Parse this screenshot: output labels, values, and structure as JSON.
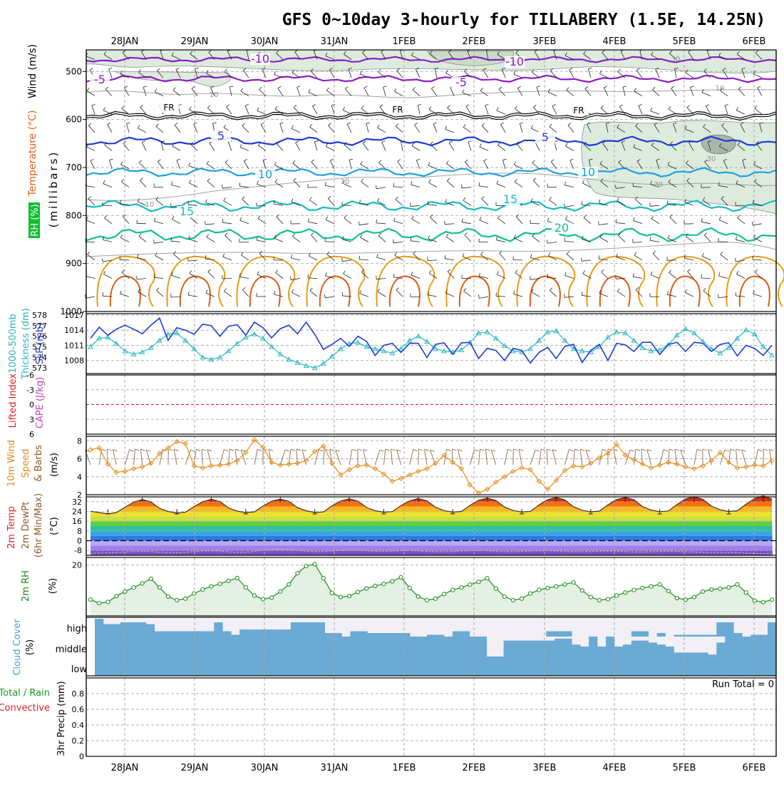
{
  "chart_data": {
    "type": "meteogram",
    "title": "GFS 0~10day 3-hourly for TILLABERY (1.5E, 14.25N)",
    "dates": [
      "28JAN",
      "29JAN",
      "30JAN",
      "31JAN",
      "1FEB",
      "2FEB",
      "3FEB",
      "4FEB",
      "5FEB",
      "6FEB"
    ],
    "colors": {
      "purple": "#8c1cc8",
      "black": "#000000",
      "blue": "#1c3cd8",
      "azure": "#1ca0e0",
      "teal": "#14bcc0",
      "green": "#10c090",
      "orange": "#e89a10",
      "darkorange": "#e05a10",
      "rh_fill": "#dcebdc",
      "cloud": "#6aaad4",
      "slp": "#1c3cd8",
      "thick": "#28b8c0",
      "wind": "#e88c1c",
      "rh2m": "#1c8c1c"
    },
    "panels": {
      "upper": {
        "ylabel_wind": "Wind (m/s)",
        "ylabel_temp": "Temperature (°C)",
        "ylabel_rh": "RH (%)",
        "ylabel_units": "(millibars)",
        "yticks": [
          "500",
          "600",
          "700",
          "800",
          "900",
          "1000"
        ],
        "contour_labels": [
          {
            "text": "-10",
            "color": "purple"
          },
          {
            "text": "-10",
            "color": "purple"
          },
          {
            "text": "-5",
            "color": "purple"
          },
          {
            "text": "-5",
            "color": "purple"
          },
          {
            "text": "FR",
            "color": "black"
          },
          {
            "text": "FR",
            "color": "black"
          },
          {
            "text": "FR",
            "color": "black"
          },
          {
            "text": "5",
            "color": "blue"
          },
          {
            "text": "5",
            "color": "blue"
          },
          {
            "text": "10",
            "color": "azure"
          },
          {
            "text": "10",
            "color": "azure"
          },
          {
            "text": "15",
            "color": "teal"
          },
          {
            "text": "15",
            "color": "teal"
          },
          {
            "text": "20",
            "color": "green"
          }
        ],
        "rh_labels": [
          "10",
          "10",
          "10",
          "10",
          "30",
          "30",
          "30"
        ],
        "levels_mb": {
          "minus10": 475,
          "minus5": 515,
          "freezing": 590,
          "plus5": 645,
          "plus10": 710,
          "plus15": 780,
          "plus20": 840
        },
        "ylim_mb": [
          1000,
          455
        ]
      },
      "slp_thickness": {
        "ylabel_thickness": "1000-500mb Thickness (dm)",
        "ylabel_slp": "SLP (mb)",
        "thickness_ticks": [
          "578",
          "577",
          "576",
          "575",
          "574",
          "573"
        ],
        "slp_ticks": [
          "1017",
          "1014",
          "1011",
          "1008"
        ],
        "thickness_range_dm": [
          572.6,
          578
        ],
        "slp_range_mb": [
          1005.7,
          1017
        ],
        "slp": [
          1012.4,
          1014.6,
          1013.0,
          1014.2,
          1015.0,
          1014.2,
          1013.3,
          1015.0,
          1016.4,
          1012.0,
          1014.5,
          1014.0,
          1013.2,
          1015.2,
          1014.9,
          1012.8,
          1014.8,
          1015.1,
          1013.0,
          1015.6,
          1014.5,
          1012.5,
          1014.3,
          1015.0,
          1013.3,
          1015.6,
          1013.2,
          1010.2,
          1011.2,
          1012.4,
          1010.8,
          1012.8,
          1011.8,
          1009.0,
          1011.0,
          1011.4,
          1009.6,
          1011.4,
          1011.4,
          1008.6,
          1011.2,
          1011.5,
          1009.2,
          1011.5,
          1011.6,
          1008.4,
          1010.4,
          1010.0,
          1008.0,
          1010.4,
          1010.0,
          1007.5,
          1009.6,
          1010.6,
          1008.4,
          1010.8,
          1011.2,
          1007.6,
          1010.0,
          1011.2,
          1008.0,
          1011.4,
          1011.1,
          1009.8,
          1011.6,
          1011.6,
          1009.2,
          1011.2,
          1011.6,
          1009.8,
          1011.6,
          1011.4,
          1009.8,
          1011.2,
          1011.5,
          1008.9,
          1011.0,
          1010.4,
          1009.0,
          1011.0
        ],
        "thickness": [
          575.0,
          575.8,
          575.9,
          575.3,
          574.6,
          574.3,
          574.5,
          574.9,
          575.6,
          576.2,
          576.3,
          575.6,
          574.8,
          574.0,
          573.8,
          574.0,
          574.6,
          575.3,
          575.9,
          576.2,
          575.8,
          575.0,
          574.3,
          573.8,
          573.5,
          573.2,
          573.0,
          573.4,
          574.1,
          574.8,
          575.3,
          575.4,
          575.0,
          574.8,
          574.6,
          574.4,
          574.8,
          575.6,
          576.0,
          575.5,
          574.8,
          574.6,
          574.5,
          574.7,
          575.4,
          576.3,
          576.4,
          575.8,
          575.1,
          574.6,
          574.5,
          574.8,
          575.6,
          576.4,
          576.5,
          575.6,
          574.8,
          574.6,
          574.5,
          575.0,
          575.9,
          576.4,
          576.3,
          575.6,
          574.9,
          574.6,
          574.7,
          575.2,
          576.1,
          576.7,
          576.3,
          575.5,
          574.8,
          574.4,
          574.9,
          575.8,
          576.6,
          576.2,
          575.0,
          574.2
        ]
      },
      "cape": {
        "ylabel_li": "Lifted Index",
        "ylabel_cape": "CAPE (J/kg)",
        "yticks": [
          "-6",
          "-3",
          "0",
          "3",
          "6"
        ],
        "ylim": [
          -6,
          6
        ]
      },
      "wind10m": {
        "ylabel_wind": "10m Wind",
        "ylabel_speed": "Speed",
        "ylabel_barbs": "& Barbs",
        "units": "(m/s)",
        "yticks": [
          "8",
          "6",
          "4",
          "2"
        ],
        "ylim": [
          2,
          8.5
        ],
        "speed": [
          7.0,
          7.2,
          5.4,
          4.5,
          4.6,
          4.9,
          5.1,
          5.5,
          6.6,
          7.2,
          7.9,
          7.7,
          5.2,
          5.0,
          5.2,
          5.3,
          5.4,
          5.8,
          6.7,
          8.1,
          7.3,
          5.6,
          5.3,
          5.4,
          5.5,
          5.8,
          6.8,
          7.4,
          5.5,
          4.2,
          4.8,
          5.2,
          5.3,
          4.9,
          4.3,
          3.5,
          3.8,
          4.2,
          4.6,
          4.9,
          5.5,
          6.4,
          5.6,
          4.9,
          3.1,
          2.2,
          2.6,
          3.4,
          4.0,
          4.6,
          5.0,
          4.8,
          3.5,
          2.6,
          3.6,
          4.7,
          5.2,
          5.1,
          5.5,
          6.1,
          6.6,
          7.6,
          6.4,
          5.9,
          5.4,
          5.0,
          5.3,
          5.6,
          5.4,
          5.1,
          4.9,
          5.2,
          5.8,
          6.7,
          5.6,
          5.0,
          5.1,
          5.3,
          5.2,
          5.8
        ]
      },
      "temp2m": {
        "ylabel_temp": "2m Temp",
        "ylabel_dew": "2m DewPt",
        "ylabel_minmax": "(6hr Min/Max)",
        "units": "(°C)",
        "yticks": [
          "32",
          "24",
          "16",
          "8",
          "0",
          "-8"
        ],
        "ylim": [
          -12,
          36
        ],
        "temp": [
          24.2,
          23.1,
          22.0,
          23.1,
          27.5,
          31.6,
          33.9,
          31.8,
          26.6,
          24.0,
          22.8,
          23.4,
          28.0,
          32.0,
          34.0,
          32.2,
          27.0,
          24.3,
          23.1,
          23.7,
          28.4,
          32.4,
          34.2,
          32.3,
          27.2,
          24.6,
          23.2,
          23.6,
          28.6,
          32.6,
          34.4,
          32.5,
          27.3,
          24.6,
          23.4,
          23.9,
          28.8,
          32.8,
          34.6,
          32.7,
          27.5,
          24.7,
          23.5,
          24.0,
          29.0,
          33.2,
          35.0,
          33.1,
          27.7,
          24.8,
          23.6,
          24.1,
          29.3,
          33.7,
          35.5,
          33.5,
          27.9,
          25.0,
          23.7,
          24.3,
          29.5,
          33.8,
          35.6,
          33.6,
          28.1,
          25.2,
          23.8,
          24.4,
          29.8,
          34.3,
          36.2,
          34.0,
          28.4,
          25.4,
          24.0,
          24.6,
          30.0,
          34.6,
          36.8,
          34.3
        ],
        "dewpoint": [
          -10.6,
          -10.2,
          -10.0,
          -9.8,
          -9.3,
          -8.9,
          -8.7,
          -8.9,
          -9.5,
          -9.8,
          -9.9,
          -9.6,
          -8.8,
          -8.5,
          -8.3,
          -8.6,
          -9.2,
          -9.6,
          -9.4,
          -8.8,
          -7.9,
          -7.0,
          -6.8,
          -7.2,
          -8.0,
          -8.6,
          -8.9,
          -8.8,
          -8.5,
          -8.0,
          -7.8,
          -7.9,
          -8.3,
          -8.6,
          -8.7,
          -8.6,
          -8.3,
          -8.2,
          -8.4,
          -8.8,
          -9.0,
          -9.0,
          -8.9,
          -8.5,
          -8.2,
          -8.1,
          -8.3,
          -8.6,
          -8.9,
          -9.0,
          -8.8,
          -8.5,
          -8.3,
          -8.2,
          -8.4,
          -8.8,
          -9.0,
          -9.0,
          -8.8,
          -8.6,
          -8.5,
          -8.6,
          -8.9,
          -9.2,
          -9.3,
          -9.1,
          -8.8,
          -8.6,
          -8.7,
          -9.0,
          -9.3,
          -9.6,
          -9.8,
          -9.8,
          -9.8,
          -9.9,
          -10.2,
          -10.5,
          -10.7,
          -10.8
        ]
      },
      "rh2m": {
        "ylabel": "2m RH",
        "units": "(%)",
        "yticks": [
          "20"
        ],
        "ylim": [
          0,
          23
        ],
        "values": [
          6.4,
          5.0,
          5.5,
          7.8,
          9.6,
          11.2,
          12.8,
          14.6,
          11.2,
          7.6,
          6.2,
          6.8,
          8.8,
          10.4,
          11.6,
          12.6,
          13.8,
          14.9,
          11.2,
          8.0,
          6.6,
          7.2,
          9.6,
          12.4,
          16.8,
          19.6,
          20.4,
          14.8,
          9.0,
          7.4,
          7.8,
          9.4,
          10.8,
          11.8,
          12.6,
          13.6,
          15.2,
          11.0,
          7.6,
          6.2,
          6.8,
          8.6,
          10.2,
          11.2,
          12.3,
          13.4,
          14.8,
          10.8,
          7.6,
          6.2,
          6.8,
          8.8,
          10.2,
          11.0,
          11.6,
          12.4,
          13.2,
          10.0,
          7.4,
          6.2,
          6.6,
          8.0,
          9.2,
          10.2,
          11.0,
          11.6,
          12.4,
          9.8,
          7.0,
          6.4,
          7.4,
          9.6,
          10.4,
          10.7,
          11.2,
          12.4,
          9.2,
          6.0,
          5.4,
          6.4
        ]
      },
      "cloud": {
        "ylabel": "Cloud Cover",
        "units": "(%)",
        "level_labels": [
          "high",
          "middle",
          "low"
        ],
        "high": [
          100,
          70,
          70,
          80,
          80,
          80,
          70,
          30,
          30,
          30,
          30,
          30,
          30,
          30,
          80,
          30,
          10,
          40,
          40,
          40,
          40,
          40,
          40,
          80,
          80,
          80,
          80,
          20,
          20,
          0,
          30,
          30,
          20,
          20,
          20,
          20,
          20,
          0,
          0,
          10,
          10,
          0,
          30,
          30,
          0,
          0,
          0,
          0,
          0,
          0,
          0,
          0,
          0,
          30,
          30,
          30,
          0,
          0,
          0,
          0,
          0,
          0,
          0,
          30,
          30,
          0,
          20,
          0,
          10,
          10,
          10,
          10,
          10,
          80,
          80,
          20,
          0,
          10,
          10,
          80
        ],
        "middle": [
          100,
          100,
          100,
          100,
          100,
          100,
          100,
          100,
          100,
          100,
          100,
          100,
          100,
          100,
          100,
          100,
          100,
          100,
          100,
          100,
          100,
          100,
          100,
          100,
          100,
          100,
          100,
          100,
          100,
          100,
          100,
          100,
          100,
          100,
          100,
          100,
          100,
          100,
          100,
          100,
          100,
          100,
          100,
          100,
          100,
          100,
          0,
          0,
          80,
          80,
          80,
          80,
          80,
          80,
          90,
          90,
          60,
          50,
          100,
          50,
          100,
          50,
          60,
          80,
          80,
          70,
          60,
          50,
          20,
          20,
          20,
          20,
          10,
          70,
          100,
          100,
          100,
          100,
          100,
          100
        ]
      },
      "precip": {
        "ylabel": "3hr Precip (mm)",
        "legend_total": "Total / Rain",
        "legend_conv": "Convective",
        "run_total": "Run Total = 0",
        "yticks": [
          "0",
          "0.2",
          "0.4",
          "0.6",
          "0.8"
        ],
        "ylim": [
          0,
          1
        ]
      }
    }
  }
}
